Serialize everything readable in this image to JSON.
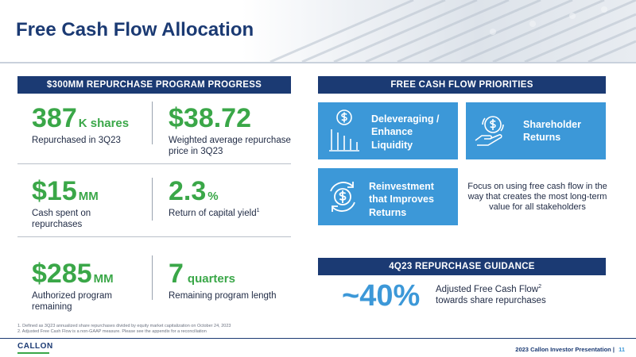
{
  "header": {
    "title": "Free Cash Flow Allocation"
  },
  "left_section": {
    "title": "$300MM REPURCHASE PROGRAM PROGRESS",
    "stats": [
      {
        "value": "387",
        "unit": "K shares",
        "description": "Repurchased in 3Q23"
      },
      {
        "value": "$38.72",
        "unit": "",
        "description": "Weighted average repurchase price in 3Q23"
      },
      {
        "value": "$15",
        "unit": "MM",
        "description": "Cash spent on repurchases"
      },
      {
        "value": "2.3",
        "unit": "%",
        "description": "Return of capital yield",
        "footnote": "1"
      },
      {
        "value": "$285",
        "unit": "MM",
        "description": "Authorized program remaining"
      },
      {
        "value": "7",
        "unit": "quarters",
        "description": "Remaining program length"
      }
    ]
  },
  "priorities": {
    "title": "FREE CASH FLOW PRIORITIES",
    "tiles": [
      {
        "label": "Deleveraging / Enhance Liquidity",
        "icon": "dollar-chart-icon"
      },
      {
        "label": "Shareholder Returns",
        "icon": "hand-coin-icon"
      },
      {
        "label": "Reinvestment that Improves Returns",
        "icon": "dollar-cycle-icon"
      }
    ],
    "focus_text": "Focus on using free cash flow in the way that creates the most long-term value for all stakeholders"
  },
  "guidance": {
    "title": "4Q23 REPURCHASE GUIDANCE",
    "value": "~40%",
    "description_line1": "Adjusted Free Cash Flow",
    "footnote": "2",
    "description_line2": "towards share repurchases"
  },
  "footnotes": [
    "1. Defined as 3Q23 annualized share repurchases divided by equity market capitalization on October 24, 2023",
    "2. Adjusted Free Cash Flow is a non-GAAP measure. Please see the appendix for a reconciliation"
  ],
  "footer": {
    "logo": "CALLON",
    "presentation": "2023 Callon Investor Presentation",
    "separator": "|",
    "page": "11"
  },
  "colors": {
    "navy": "#1b3a73",
    "green": "#3aa748",
    "blue": "#3c98d8"
  }
}
